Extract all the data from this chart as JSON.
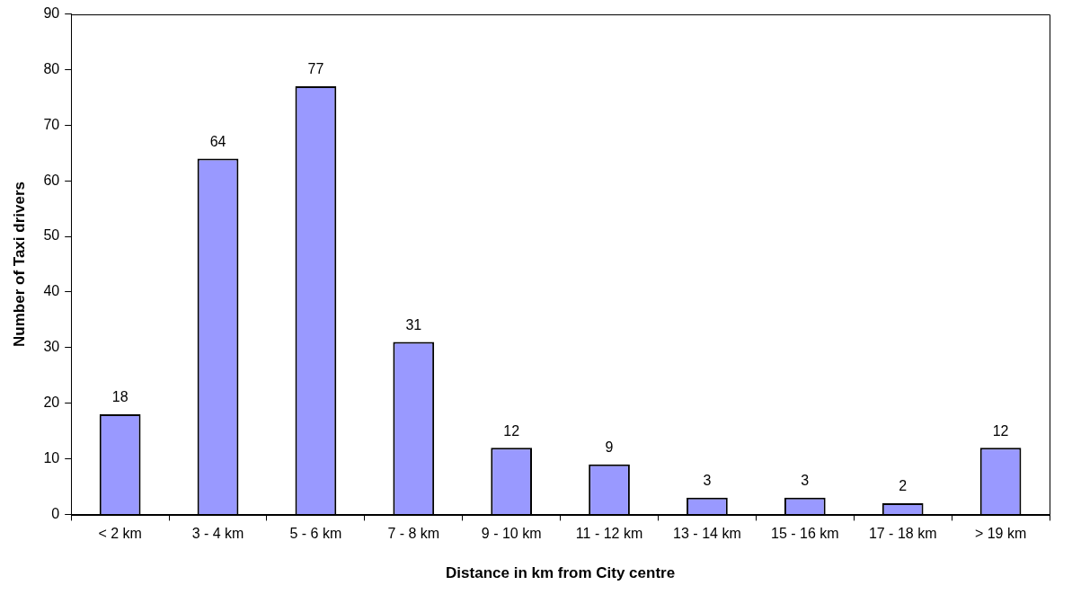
{
  "chart_data": {
    "type": "bar",
    "xlabel": "Distance in km from City centre",
    "ylabel": "Number of Taxi drivers",
    "categories": [
      "< 2 km",
      "3 - 4 km",
      "5 - 6 km",
      "7 - 8 km",
      "9 - 10 km",
      "11 - 12 km",
      "13 - 14 km",
      "15 - 16 km",
      "17 - 18 km",
      "> 19 km"
    ],
    "values": [
      18,
      64,
      77,
      31,
      12,
      9,
      3,
      3,
      2,
      12
    ],
    "color": "#9999ff",
    "ylim": [
      0,
      90
    ],
    "yticks": [
      0,
      10,
      20,
      30,
      40,
      50,
      60,
      70,
      80,
      90
    ],
    "data_labels": true
  }
}
